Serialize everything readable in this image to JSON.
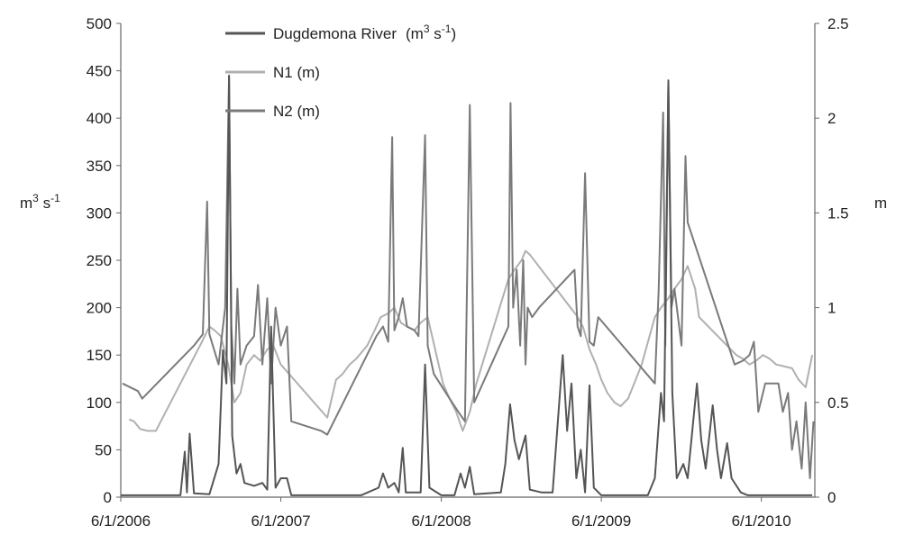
{
  "chart_data": {
    "type": "line",
    "title": "",
    "left_axis": {
      "label": "m³ s⁻¹",
      "label_base": "m",
      "label_sup1": "3",
      "label_mid": " s",
      "label_sup2": "-1",
      "min": 0,
      "max": 500,
      "ticks": [
        "0",
        "50",
        "100",
        "150",
        "200",
        "250",
        "300",
        "350",
        "400",
        "450",
        "500"
      ]
    },
    "right_axis": {
      "label": "m",
      "min": 0,
      "max": 2.5,
      "ticks": [
        "0",
        "0.5",
        "1",
        "1.5",
        "2",
        "2.5"
      ]
    },
    "x_axis": {
      "min": "6/1/2006",
      "max": "10/1/2010",
      "tick_labels": [
        "6/1/2006",
        "6/1/2007",
        "6/1/2008",
        "6/1/2009",
        "6/1/2010"
      ],
      "tick_dates": [
        "2006-06-01",
        "2007-06-01",
        "2008-06-01",
        "2009-06-01",
        "2010-06-01"
      ]
    },
    "legend": {
      "placement": "top-left-inside",
      "entries": [
        {
          "name": "Dugdemona River",
          "unit": "(m³ s⁻¹)",
          "unit_base": "(m",
          "unit_sup1": "3",
          "unit_mid": " s",
          "unit_sup2": "-1",
          "unit_end": ")",
          "color": "#555555"
        },
        {
          "name": "N1 (m)",
          "color": "#b0b0b0"
        },
        {
          "name": "N2 (m)",
          "color": "#7a7a7a"
        }
      ]
    },
    "grid": false,
    "series": [
      {
        "name": "Dugdemona River",
        "axis": "left",
        "color": "#555555",
        "points": [
          [
            "2006-06-01",
            2
          ],
          [
            "2006-10-15",
            2
          ],
          [
            "2006-10-25",
            48
          ],
          [
            "2006-10-30",
            5
          ],
          [
            "2006-11-05",
            67
          ],
          [
            "2006-11-15",
            4
          ],
          [
            "2006-12-20",
            3
          ],
          [
            "2007-01-10",
            35
          ],
          [
            "2007-01-20",
            155
          ],
          [
            "2007-01-28",
            120
          ],
          [
            "2007-02-03",
            445
          ],
          [
            "2007-02-10",
            65
          ],
          [
            "2007-02-20",
            25
          ],
          [
            "2007-03-01",
            35
          ],
          [
            "2007-03-10",
            15
          ],
          [
            "2007-04-01",
            12
          ],
          [
            "2007-04-20",
            15
          ],
          [
            "2007-05-01",
            8
          ],
          [
            "2007-05-10",
            180
          ],
          [
            "2007-05-20",
            10
          ],
          [
            "2007-06-01",
            20
          ],
          [
            "2007-06-15",
            20
          ],
          [
            "2007-06-25",
            2
          ],
          [
            "2007-12-01",
            2
          ],
          [
            "2008-01-10",
            10
          ],
          [
            "2008-01-20",
            25
          ],
          [
            "2008-02-01",
            10
          ],
          [
            "2008-02-15",
            15
          ],
          [
            "2008-02-25",
            5
          ],
          [
            "2008-03-05",
            52
          ],
          [
            "2008-03-12",
            5
          ],
          [
            "2008-04-15",
            5
          ],
          [
            "2008-04-25",
            140
          ],
          [
            "2008-05-05",
            10
          ],
          [
            "2008-06-01",
            2
          ],
          [
            "2008-07-01",
            2
          ],
          [
            "2008-07-15",
            25
          ],
          [
            "2008-07-25",
            10
          ],
          [
            "2008-08-05",
            32
          ],
          [
            "2008-08-15",
            3
          ],
          [
            "2008-10-15",
            5
          ],
          [
            "2008-10-25",
            35
          ],
          [
            "2008-11-05",
            98
          ],
          [
            "2008-11-15",
            60
          ],
          [
            "2008-11-25",
            40
          ],
          [
            "2008-12-10",
            65
          ],
          [
            "2008-12-20",
            8
          ],
          [
            "2009-01-15",
            5
          ],
          [
            "2009-02-10",
            5
          ],
          [
            "2009-03-05",
            150
          ],
          [
            "2009-03-15",
            70
          ],
          [
            "2009-03-25",
            120
          ],
          [
            "2009-04-05",
            20
          ],
          [
            "2009-04-15",
            50
          ],
          [
            "2009-04-25",
            5
          ],
          [
            "2009-05-05",
            118
          ],
          [
            "2009-05-15",
            10
          ],
          [
            "2009-06-01",
            2
          ],
          [
            "2009-09-15",
            2
          ],
          [
            "2009-10-01",
            20
          ],
          [
            "2009-10-15",
            110
          ],
          [
            "2009-10-22",
            80
          ],
          [
            "2009-11-01",
            440
          ],
          [
            "2009-11-10",
            110
          ],
          [
            "2009-11-20",
            20
          ],
          [
            "2009-12-05",
            35
          ],
          [
            "2009-12-15",
            20
          ],
          [
            "2010-01-05",
            120
          ],
          [
            "2010-01-15",
            60
          ],
          [
            "2010-01-25",
            30
          ],
          [
            "2010-02-10",
            97
          ],
          [
            "2010-02-20",
            50
          ],
          [
            "2010-03-01",
            20
          ],
          [
            "2010-03-15",
            57
          ],
          [
            "2010-03-25",
            20
          ],
          [
            "2010-04-15",
            5
          ],
          [
            "2010-05-01",
            2
          ],
          [
            "2010-09-25",
            2
          ]
        ]
      },
      {
        "name": "N1 (m)",
        "axis": "right",
        "color": "#b0b0b0",
        "points": [
          [
            "2006-06-20",
            0.41
          ],
          [
            "2006-07-01",
            0.4
          ],
          [
            "2006-07-15",
            0.36
          ],
          [
            "2006-08-01",
            0.35
          ],
          [
            "2006-08-20",
            0.35
          ],
          [
            "2006-12-01",
            0.81
          ],
          [
            "2006-12-20",
            0.9
          ],
          [
            "2007-01-01",
            0.88
          ],
          [
            "2007-01-15",
            0.85
          ],
          [
            "2007-02-01",
            0.7
          ],
          [
            "2007-02-15",
            0.5
          ],
          [
            "2007-03-01",
            0.55
          ],
          [
            "2007-03-15",
            0.7
          ],
          [
            "2007-04-01",
            0.75
          ],
          [
            "2007-04-15",
            0.72
          ],
          [
            "2007-05-01",
            0.78
          ],
          [
            "2007-05-15",
            0.8
          ],
          [
            "2007-06-01",
            0.7
          ],
          [
            "2007-09-15",
            0.42
          ],
          [
            "2007-10-05",
            0.62
          ],
          [
            "2007-10-20",
            0.65
          ],
          [
            "2007-11-05",
            0.7
          ],
          [
            "2007-11-20",
            0.73
          ],
          [
            "2007-12-15",
            0.8
          ],
          [
            "2008-01-01",
            0.88
          ],
          [
            "2008-01-15",
            0.95
          ],
          [
            "2008-02-01",
            0.97
          ],
          [
            "2008-02-15",
            1.0
          ],
          [
            "2008-03-01",
            0.92
          ],
          [
            "2008-03-15",
            0.9
          ],
          [
            "2008-04-01",
            0.88
          ],
          [
            "2008-04-15",
            0.92
          ],
          [
            "2008-05-01",
            0.95
          ],
          [
            "2008-06-05",
            0.6
          ],
          [
            "2008-06-20",
            0.52
          ],
          [
            "2008-07-05",
            0.45
          ],
          [
            "2008-07-20",
            0.35
          ],
          [
            "2008-08-05",
            0.45
          ],
          [
            "2008-08-20",
            0.6
          ],
          [
            "2008-11-01",
            1.15
          ],
          [
            "2008-11-15",
            1.2
          ],
          [
            "2008-12-01",
            1.25
          ],
          [
            "2008-12-10",
            1.3
          ],
          [
            "2008-12-20",
            1.28
          ],
          [
            "2009-04-05",
            0.96
          ],
          [
            "2009-04-20",
            0.9
          ],
          [
            "2009-05-05",
            0.78
          ],
          [
            "2009-05-20",
            0.7
          ],
          [
            "2009-06-01",
            0.62
          ],
          [
            "2009-06-15",
            0.55
          ],
          [
            "2009-07-01",
            0.5
          ],
          [
            "2009-07-15",
            0.48
          ],
          [
            "2009-08-01",
            0.52
          ],
          [
            "2009-08-15",
            0.6
          ],
          [
            "2009-09-01",
            0.7
          ],
          [
            "2009-10-01",
            0.95
          ],
          [
            "2009-10-15",
            1.0
          ],
          [
            "2009-11-01",
            1.05
          ],
          [
            "2009-11-15",
            1.1
          ],
          [
            "2009-12-01",
            1.15
          ],
          [
            "2009-12-15",
            1.22
          ],
          [
            "2010-01-01",
            1.1
          ],
          [
            "2010-01-10",
            0.95
          ],
          [
            "2010-04-05",
            0.75
          ],
          [
            "2010-04-20",
            0.73
          ],
          [
            "2010-05-05",
            0.7
          ],
          [
            "2010-05-20",
            0.72
          ],
          [
            "2010-06-05",
            0.75
          ],
          [
            "2010-06-20",
            0.73
          ],
          [
            "2010-07-05",
            0.7
          ],
          [
            "2010-08-10",
            0.68
          ],
          [
            "2010-08-25",
            0.62
          ],
          [
            "2010-09-10",
            0.58
          ],
          [
            "2010-09-25",
            0.75
          ]
        ]
      },
      {
        "name": "N2 (m)",
        "axis": "right",
        "color": "#7a7a7a",
        "points": [
          [
            "2006-06-05",
            0.6
          ],
          [
            "2006-07-10",
            0.56
          ],
          [
            "2006-07-20",
            0.52
          ],
          [
            "2006-11-15",
            0.8
          ],
          [
            "2006-12-05",
            0.86
          ],
          [
            "2006-12-15",
            1.56
          ],
          [
            "2006-12-20",
            0.86
          ],
          [
            "2007-01-10",
            0.7
          ],
          [
            "2007-01-25",
            1.0
          ],
          [
            "2007-02-03",
            2.22
          ],
          [
            "2007-02-08",
            0.9
          ],
          [
            "2007-02-15",
            0.6
          ],
          [
            "2007-02-22",
            1.1
          ],
          [
            "2007-03-01",
            0.7
          ],
          [
            "2007-03-15",
            0.8
          ],
          [
            "2007-04-01",
            0.85
          ],
          [
            "2007-04-10",
            1.12
          ],
          [
            "2007-04-20",
            0.7
          ],
          [
            "2007-05-01",
            1.05
          ],
          [
            "2007-05-10",
            0.6
          ],
          [
            "2007-05-20",
            1.0
          ],
          [
            "2007-06-01",
            0.8
          ],
          [
            "2007-06-15",
            0.9
          ],
          [
            "2007-06-25",
            0.4
          ],
          [
            "2007-09-01",
            0.35
          ],
          [
            "2007-09-15",
            0.33
          ],
          [
            "2008-01-05",
            0.85
          ],
          [
            "2008-01-20",
            0.9
          ],
          [
            "2008-02-01",
            0.82
          ],
          [
            "2008-02-10",
            1.9
          ],
          [
            "2008-02-15",
            0.88
          ],
          [
            "2008-02-25",
            0.95
          ],
          [
            "2008-03-05",
            1.05
          ],
          [
            "2008-03-15",
            0.9
          ],
          [
            "2008-04-01",
            0.88
          ],
          [
            "2008-04-10",
            0.85
          ],
          [
            "2008-04-25",
            1.91
          ],
          [
            "2008-05-01",
            0.8
          ],
          [
            "2008-05-15",
            0.65
          ],
          [
            "2008-06-20",
            0.52
          ],
          [
            "2008-07-10",
            0.45
          ],
          [
            "2008-07-25",
            0.4
          ],
          [
            "2008-08-05",
            2.07
          ],
          [
            "2008-08-15",
            0.5
          ],
          [
            "2008-11-01",
            0.9
          ],
          [
            "2008-11-06",
            2.08
          ],
          [
            "2008-11-12",
            1.0
          ],
          [
            "2008-11-20",
            1.2
          ],
          [
            "2008-11-28",
            0.8
          ],
          [
            "2008-12-05",
            1.25
          ],
          [
            "2008-12-10",
            0.7
          ],
          [
            "2008-12-15",
            1.0
          ],
          [
            "2008-12-25",
            0.95
          ],
          [
            "2009-01-10",
            1.0
          ],
          [
            "2009-04-01",
            1.2
          ],
          [
            "2009-04-08",
            0.9
          ],
          [
            "2009-04-15",
            0.85
          ],
          [
            "2009-04-25",
            1.71
          ],
          [
            "2009-05-05",
            0.82
          ],
          [
            "2009-05-15",
            0.8
          ],
          [
            "2009-05-25",
            0.95
          ],
          [
            "2009-10-01",
            0.6
          ],
          [
            "2009-10-10",
            1.1
          ],
          [
            "2009-10-20",
            2.03
          ],
          [
            "2009-10-25",
            0.8
          ],
          [
            "2009-11-01",
            2.18
          ],
          [
            "2009-11-08",
            1.0
          ],
          [
            "2009-11-15",
            1.1
          ],
          [
            "2009-12-01",
            0.8
          ],
          [
            "2009-12-10",
            1.8
          ],
          [
            "2009-12-15",
            1.45
          ],
          [
            "2010-04-01",
            0.7
          ],
          [
            "2010-04-20",
            0.72
          ],
          [
            "2010-05-05",
            0.75
          ],
          [
            "2010-05-15",
            0.82
          ],
          [
            "2010-05-25",
            0.45
          ],
          [
            "2010-06-10",
            0.6
          ],
          [
            "2010-07-10",
            0.6
          ],
          [
            "2010-07-20",
            0.45
          ],
          [
            "2010-08-01",
            0.55
          ],
          [
            "2010-08-10",
            0.25
          ],
          [
            "2010-08-20",
            0.4
          ],
          [
            "2010-09-01",
            0.15
          ],
          [
            "2010-09-10",
            0.5
          ],
          [
            "2010-09-20",
            0.1
          ],
          [
            "2010-09-28",
            0.4
          ]
        ]
      }
    ]
  }
}
